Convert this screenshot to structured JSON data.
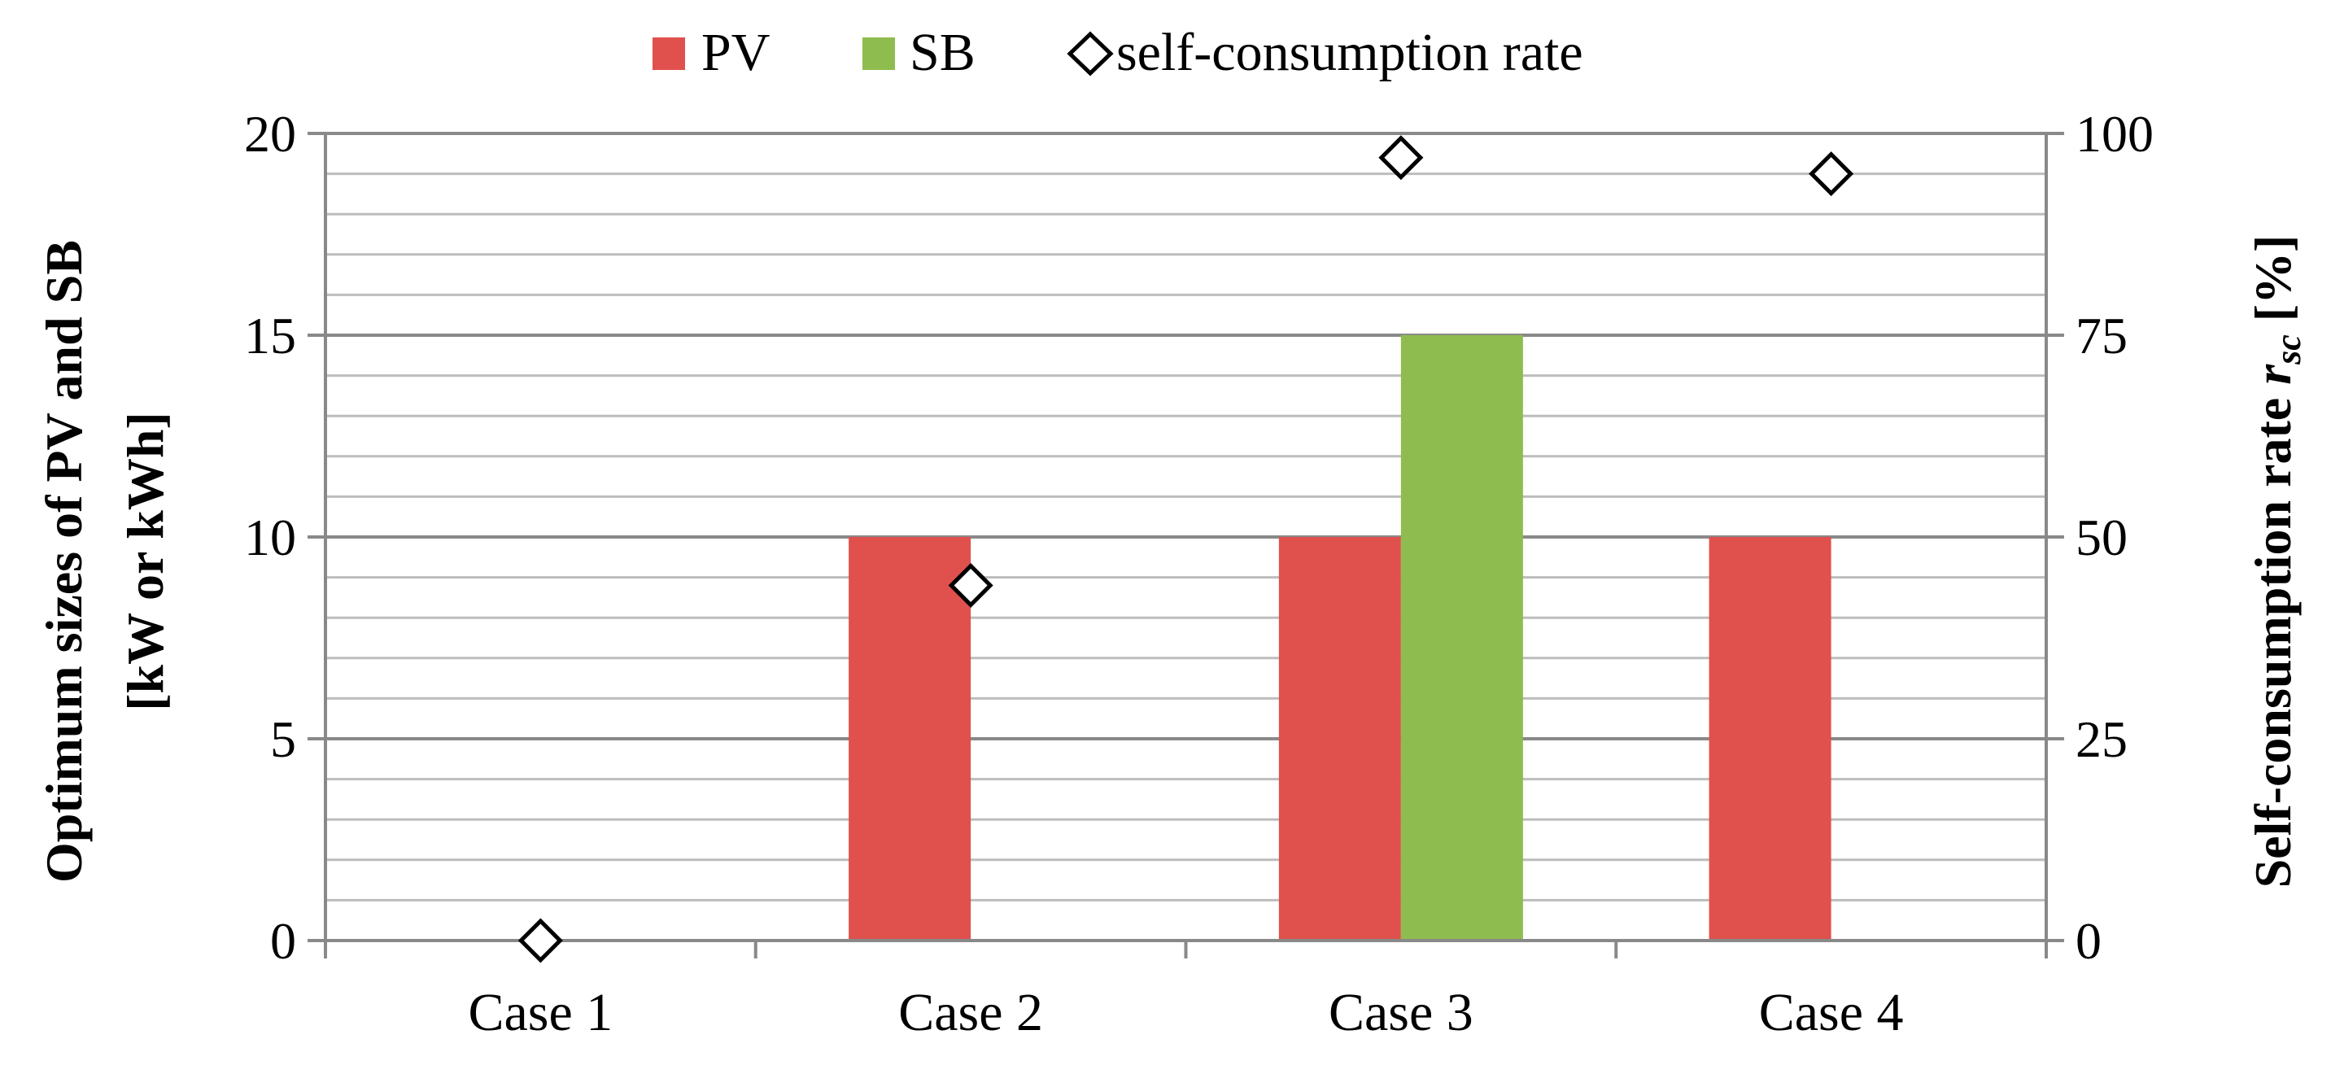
{
  "chart_data": {
    "type": "bar",
    "categories": [
      "Case 1",
      "Case 2",
      "Case 3",
      "Case 4"
    ],
    "series": [
      {
        "name": "PV",
        "axis": "left",
        "kind": "bar",
        "color": "#e0504d",
        "values": [
          0,
          10,
          10,
          10
        ]
      },
      {
        "name": "SB",
        "axis": "left",
        "kind": "bar",
        "color": "#8fbc4f",
        "values": [
          0,
          0,
          15,
          0
        ]
      },
      {
        "name": "self-consumption rate",
        "axis": "right",
        "kind": "marker",
        "marker": "diamond",
        "values": [
          0,
          44,
          97,
          95
        ]
      }
    ],
    "ylabel_line1": "Optimum sizes of PV and SB",
    "ylabel_line2": "[kW or kWh]",
    "y2label_main": "Self-consumption rate ",
    "y2label_var": "r",
    "y2label_sub": "sc",
    "y2label_unit": " [%]",
    "ylim": [
      0,
      20
    ],
    "y2lim": [
      0,
      100
    ],
    "yticks": [
      0,
      5,
      10,
      15,
      20
    ],
    "y2ticks": [
      0,
      25,
      50,
      75,
      100
    ],
    "minor_gridlines_per_major": 5,
    "legend": [
      {
        "label": "PV",
        "symbol": "square",
        "color": "#e0504d"
      },
      {
        "label": "SB",
        "symbol": "square",
        "color": "#8fbc4f"
      },
      {
        "label": "self-consumption rate",
        "symbol": "diamond"
      }
    ],
    "legend_position": "top"
  }
}
